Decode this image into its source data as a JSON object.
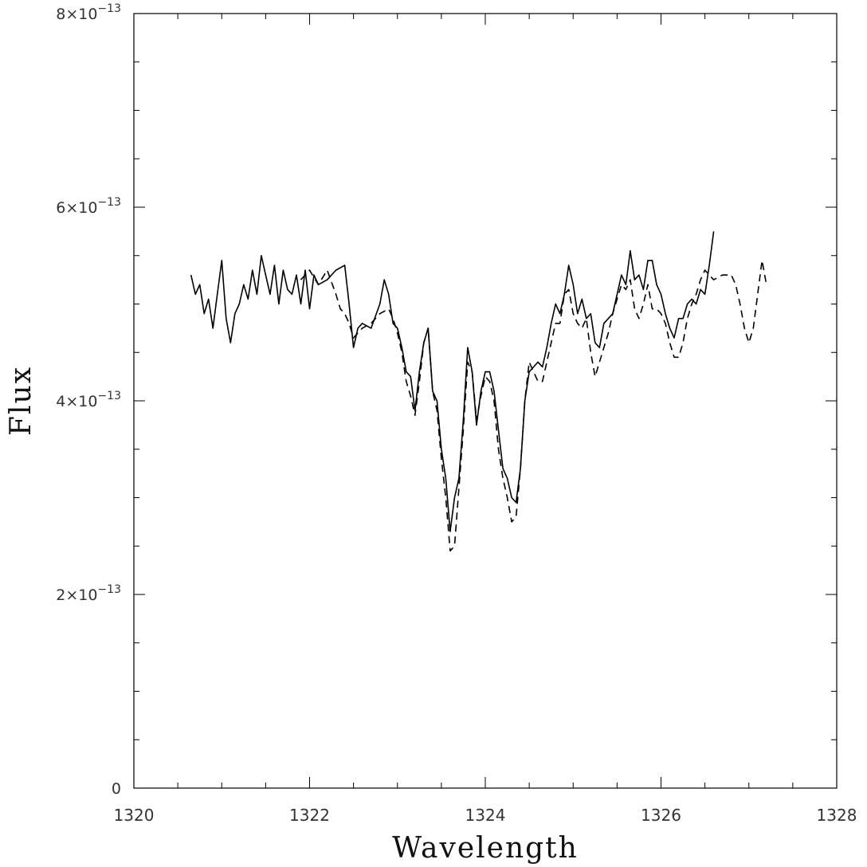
{
  "chart_data": {
    "type": "line",
    "title": "",
    "xlabel": "Wavelength",
    "ylabel": "Flux",
    "xlim": [
      1320,
      1328
    ],
    "ylim": [
      0,
      8e-13
    ],
    "x_ticks": [
      1320,
      1322,
      1324,
      1326,
      1328
    ],
    "x_tick_labels": [
      "1320",
      "1322",
      "1324",
      "1326",
      "1328"
    ],
    "y_ticks": [
      0,
      2e-13,
      4e-13,
      6e-13,
      8e-13
    ],
    "y_tick_labels": [
      {
        "mantissa": "0",
        "exp": ""
      },
      {
        "mantissa": "2×10",
        "exp": "−13"
      },
      {
        "mantissa": "4×10",
        "exp": "−13"
      },
      {
        "mantissa": "6×10",
        "exp": "−13"
      },
      {
        "mantissa": "8×10",
        "exp": "−13"
      }
    ],
    "grid": false,
    "series": [
      {
        "style": "solid",
        "x": [
          1320.65,
          1320.7,
          1320.75,
          1320.8,
          1320.85,
          1320.9,
          1320.95,
          1321.0,
          1321.05,
          1321.1,
          1321.15,
          1321.2,
          1321.25,
          1321.3,
          1321.35,
          1321.4,
          1321.45,
          1321.5,
          1321.55,
          1321.6,
          1321.65,
          1321.7,
          1321.75,
          1321.8,
          1321.85,
          1321.9,
          1321.95,
          1322.0,
          1322.05,
          1322.1,
          1322.2,
          1322.3,
          1322.4,
          1322.45,
          1322.5,
          1322.55,
          1322.6,
          1322.7,
          1322.8,
          1322.85,
          1322.9,
          1322.95,
          1323.0,
          1323.05,
          1323.1,
          1323.15,
          1323.2,
          1323.25,
          1323.3,
          1323.35,
          1323.4,
          1323.45,
          1323.5,
          1323.55,
          1323.6,
          1323.65,
          1323.7,
          1323.75,
          1323.8,
          1323.85,
          1323.9,
          1323.95,
          1324.0,
          1324.05,
          1324.1,
          1324.15,
          1324.2,
          1324.25,
          1324.3,
          1324.35,
          1324.4,
          1324.45,
          1324.5,
          1324.55,
          1324.6,
          1324.65,
          1324.7,
          1324.75,
          1324.8,
          1324.85,
          1324.9,
          1324.95,
          1325.0,
          1325.05,
          1325.1,
          1325.15,
          1325.2,
          1325.25,
          1325.3,
          1325.35,
          1325.4,
          1325.45,
          1325.5,
          1325.55,
          1325.6,
          1325.65,
          1325.7,
          1325.75,
          1325.8,
          1325.85,
          1325.9,
          1325.95,
          1326.0,
          1326.05,
          1326.1,
          1326.15,
          1326.2,
          1326.25,
          1326.3,
          1326.35,
          1326.4,
          1326.45,
          1326.5,
          1326.55,
          1326.6
        ],
        "y": [
          5.3e-13,
          5.1e-13,
          5.2e-13,
          4.9e-13,
          5.05e-13,
          4.75e-13,
          5.1e-13,
          5.45e-13,
          4.85e-13,
          4.6e-13,
          4.9e-13,
          5e-13,
          5.2e-13,
          5.05e-13,
          5.35e-13,
          5.1e-13,
          5.5e-13,
          5.3e-13,
          5.1e-13,
          5.4e-13,
          5e-13,
          5.35e-13,
          5.15e-13,
          5.1e-13,
          5.3e-13,
          5e-13,
          5.35e-13,
          4.95e-13,
          5.3e-13,
          5.2e-13,
          5.25e-13,
          5.35e-13,
          5.4e-13,
          5e-13,
          4.55e-13,
          4.75e-13,
          4.8e-13,
          4.75e-13,
          5e-13,
          5.25e-13,
          5.1e-13,
          4.8e-13,
          4.75e-13,
          4.55e-13,
          4.3e-13,
          4.25e-13,
          3.9e-13,
          4.3e-13,
          4.6e-13,
          4.75e-13,
          4.1e-13,
          4e-13,
          3.5e-13,
          3.2e-13,
          2.65e-13,
          3e-13,
          3.2e-13,
          3.8e-13,
          4.55e-13,
          4.3e-13,
          3.75e-13,
          4.1e-13,
          4.3e-13,
          4.3e-13,
          4.1e-13,
          3.7e-13,
          3.3e-13,
          3.2e-13,
          3e-13,
          2.95e-13,
          3.3e-13,
          4e-13,
          4.3e-13,
          4.35e-13,
          4.4e-13,
          4.35e-13,
          4.55e-13,
          4.8e-13,
          5e-13,
          4.9e-13,
          5.1e-13,
          5.4e-13,
          5.2e-13,
          4.9e-13,
          5.05e-13,
          4.85e-13,
          4.9e-13,
          4.6e-13,
          4.55e-13,
          4.8e-13,
          4.85e-13,
          4.9e-13,
          5.1e-13,
          5.3e-13,
          5.2e-13,
          5.55e-13,
          5.25e-13,
          5.3e-13,
          5.15e-13,
          5.45e-13,
          5.45e-13,
          5.2e-13,
          5.1e-13,
          4.9e-13,
          4.75e-13,
          4.65e-13,
          4.85e-13,
          4.85e-13,
          5e-13,
          5.05e-13,
          5e-13,
          5.15e-13,
          5.1e-13,
          5.4e-13,
          5.75e-13
        ]
      },
      {
        "style": "dashed",
        "x": [
          1321.9,
          1322.0,
          1322.1,
          1322.2,
          1322.3,
          1322.35,
          1322.4,
          1322.45,
          1322.5,
          1322.55,
          1322.6,
          1322.7,
          1322.8,
          1322.9,
          1322.95,
          1323.0,
          1323.05,
          1323.1,
          1323.15,
          1323.2,
          1323.25,
          1323.3,
          1323.35,
          1323.4,
          1323.45,
          1323.5,
          1323.55,
          1323.6,
          1323.65,
          1323.7,
          1323.75,
          1323.8,
          1323.85,
          1323.9,
          1323.95,
          1324.0,
          1324.05,
          1324.1,
          1324.15,
          1324.2,
          1324.25,
          1324.3,
          1324.35,
          1324.4,
          1324.45,
          1324.5,
          1324.55,
          1324.6,
          1324.65,
          1324.7,
          1324.75,
          1324.8,
          1324.85,
          1324.9,
          1324.95,
          1325.0,
          1325.05,
          1325.1,
          1325.15,
          1325.2,
          1325.25,
          1325.3,
          1325.35,
          1325.4,
          1325.45,
          1325.5,
          1325.55,
          1325.6,
          1325.65,
          1325.7,
          1325.75,
          1325.8,
          1325.85,
          1325.9,
          1325.95,
          1326.0,
          1326.05,
          1326.1,
          1326.15,
          1326.2,
          1326.25,
          1326.3,
          1326.35,
          1326.4,
          1326.45,
          1326.5,
          1326.55,
          1326.6,
          1326.7,
          1326.8,
          1326.85,
          1326.9,
          1326.95,
          1327.0,
          1327.05,
          1327.1,
          1327.15,
          1327.2
        ],
        "y": [
          5.25e-13,
          5.35e-13,
          5.2e-13,
          5.35e-13,
          5.1e-13,
          4.95e-13,
          4.9e-13,
          4.8e-13,
          4.65e-13,
          4.7e-13,
          4.75e-13,
          4.8e-13,
          4.9e-13,
          4.95e-13,
          4.85e-13,
          4.7e-13,
          4.5e-13,
          4.2e-13,
          4.05e-13,
          3.85e-13,
          4.2e-13,
          4.6e-13,
          4.75e-13,
          4.1e-13,
          3.9e-13,
          3.4e-13,
          3e-13,
          2.45e-13,
          2.5e-13,
          3.1e-13,
          3.7e-13,
          4.4e-13,
          4.3e-13,
          3.8e-13,
          4.05e-13,
          4.25e-13,
          4.2e-13,
          4e-13,
          3.5e-13,
          3.2e-13,
          3e-13,
          2.75e-13,
          2.8e-13,
          3.3e-13,
          4e-13,
          4.4e-13,
          4.3e-13,
          4.2e-13,
          4.2e-13,
          4.4e-13,
          4.6e-13,
          4.8e-13,
          4.8e-13,
          5.1e-13,
          5.15e-13,
          4.9e-13,
          4.8e-13,
          4.75e-13,
          4.85e-13,
          4.5e-13,
          4.25e-13,
          4.4e-13,
          4.55e-13,
          4.7e-13,
          4.9e-13,
          5.05e-13,
          5.2e-13,
          5.15e-13,
          5.25e-13,
          4.95e-13,
          4.85e-13,
          5e-13,
          5.2e-13,
          4.95e-13,
          4.95e-13,
          4.9e-13,
          4.8e-13,
          4.6e-13,
          4.45e-13,
          4.45e-13,
          4.6e-13,
          4.85e-13,
          5e-13,
          5.1e-13,
          5.25e-13,
          5.35e-13,
          5.3e-13,
          5.25e-13,
          5.3e-13,
          5.3e-13,
          5.2e-13,
          5e-13,
          4.75e-13,
          4.6e-13,
          4.75e-13,
          5.1e-13,
          5.45e-13,
          5.2e-13
        ]
      }
    ]
  }
}
